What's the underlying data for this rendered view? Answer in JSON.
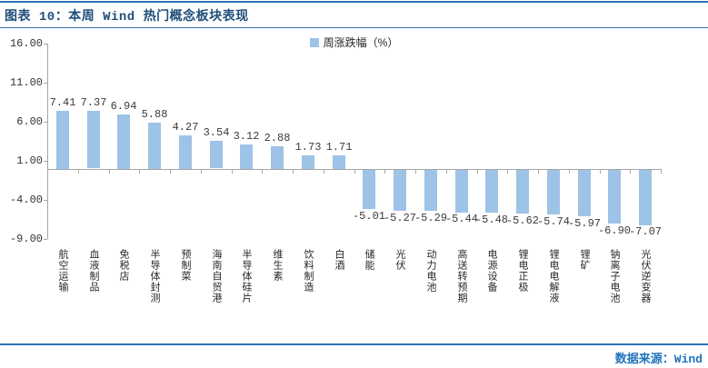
{
  "title": "图表 10：本周 Wind 热门概念板块表现",
  "legend": {
    "label": "周涨跌幅（%）"
  },
  "source": "数据来源：Wind",
  "colors": {
    "bar": "#9DC3E6",
    "axis": "#A6A6A6",
    "rule": "#2E74B5",
    "title_text": "#1F4E79",
    "source_text": "#2074BC",
    "label_text": "#3b3b3b"
  },
  "chart_data": {
    "type": "bar",
    "title": "本周 Wind 热门概念板块表现",
    "series_name": "周涨跌幅（%）",
    "categories": [
      "航空运输",
      "血液制品",
      "免税店",
      "半导体封测",
      "预制菜",
      "海南自贸港",
      "半导体硅片",
      "维生素",
      "饮料制造",
      "白酒",
      "储能",
      "光伏",
      "动力电池",
      "高送转预期",
      "电源设备",
      "锂电正极",
      "锂电电解液",
      "锂矿",
      "钠离子电池",
      "光伏逆变器"
    ],
    "values": [
      7.41,
      7.37,
      6.94,
      5.88,
      4.27,
      3.54,
      3.12,
      2.88,
      1.73,
      1.71,
      -5.01,
      -5.27,
      -5.29,
      -5.44,
      -5.48,
      -5.62,
      -5.74,
      -5.97,
      -6.9,
      -7.07
    ],
    "value_labels": [
      "7.41",
      "7.37",
      "6.94",
      "5.88",
      "4.27",
      "3.54",
      "3.12",
      "2.88",
      "1.73",
      "1.71",
      "-5.01",
      "-5.27",
      "-5.29",
      "-5.44",
      "-5.48",
      "-5.62",
      "-5.74",
      "-5.97",
      "-6.90",
      "-7.07"
    ],
    "xlabel": "",
    "ylabel": "",
    "ylim": [
      -9,
      16
    ],
    "yticks": [
      16,
      11,
      6,
      1,
      -4,
      -9
    ],
    "ytick_labels": [
      "16.00",
      "11.00",
      "6.00",
      "1.00",
      "-4.00",
      "-9.00"
    ],
    "grid": false,
    "legend_position": "top-center"
  }
}
